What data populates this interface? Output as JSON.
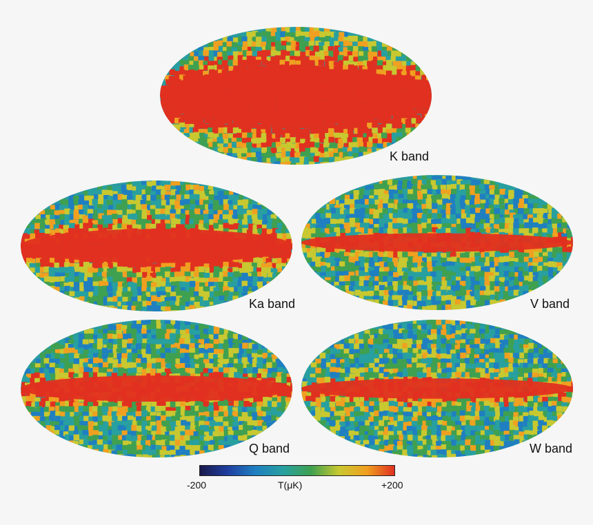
{
  "maps": [
    {
      "label": "K band",
      "galactic_strength": 1.0
    },
    {
      "label": "Ka band",
      "galactic_strength": 0.6
    },
    {
      "label": "V band",
      "galactic_strength": 0.25
    },
    {
      "label": "Q band",
      "galactic_strength": 0.4
    },
    {
      "label": "W band",
      "galactic_strength": 0.28
    }
  ],
  "colorbar": {
    "min_label": "-200",
    "unit_label": "T(μK)",
    "max_label": "+200",
    "colors": [
      "#1a1a4a",
      "#1f3fa0",
      "#1f7fc0",
      "#28a0a0",
      "#3fa050",
      "#c8c830",
      "#f0a020",
      "#e03020"
    ]
  }
}
